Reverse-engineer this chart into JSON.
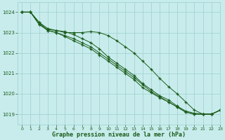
{
  "xlabel": "Graphe pression niveau de la mer (hPa)",
  "ylim": [
    1018.5,
    1024.5
  ],
  "xlim": [
    -0.5,
    23
  ],
  "yticks": [
    1019,
    1020,
    1021,
    1022,
    1023,
    1024
  ],
  "xticks": [
    0,
    1,
    2,
    3,
    4,
    5,
    6,
    7,
    8,
    9,
    10,
    11,
    12,
    13,
    14,
    15,
    16,
    17,
    18,
    19,
    20,
    21,
    22,
    23
  ],
  "background_color": "#c8ecec",
  "grid_color": "#9ecfcf",
  "line_color": "#1a5c1a",
  "series": [
    {
      "x": [
        0,
        1,
        2,
        3,
        4,
        5,
        6,
        7,
        8,
        9,
        10,
        11,
        12,
        13,
        14,
        15,
        16,
        17,
        18,
        19,
        20,
        21,
        22,
        23
      ],
      "y": [
        1024.0,
        1024.0,
        1023.5,
        1023.2,
        1023.1,
        1023.05,
        1022.9,
        1022.7,
        1022.5,
        1022.2,
        1021.8,
        1021.5,
        1021.2,
        1020.9,
        1020.5,
        1020.2,
        1019.9,
        1019.7,
        1019.4,
        1019.15,
        1019.05,
        1019.0,
        1019.0,
        1019.2
      ]
    },
    {
      "x": [
        0,
        1,
        2,
        3,
        4,
        5,
        6,
        7,
        8,
        9,
        10,
        11,
        12,
        13,
        14,
        15,
        16,
        17,
        18,
        19,
        20,
        21,
        22,
        23
      ],
      "y": [
        1024.0,
        1024.0,
        1023.5,
        1023.1,
        1023.0,
        1022.8,
        1022.6,
        1022.4,
        1022.2,
        1021.9,
        1021.6,
        1021.3,
        1021.0,
        1020.7,
        1020.3,
        1020.05,
        1019.8,
        1019.6,
        1019.35,
        1019.1,
        1019.0,
        1019.0,
        1019.0,
        1019.2
      ]
    },
    {
      "x": [
        0,
        1,
        2,
        3,
        4,
        5,
        6,
        7,
        8,
        9,
        10,
        11,
        12,
        13,
        14,
        15,
        16,
        17,
        18,
        19,
        20,
        21,
        22,
        23
      ],
      "y": [
        1024.0,
        1024.0,
        1023.4,
        1023.1,
        1023.0,
        1022.85,
        1022.7,
        1022.5,
        1022.3,
        1022.0,
        1021.7,
        1021.4,
        1021.1,
        1020.8,
        1020.45,
        1020.1,
        1019.85,
        1019.6,
        1019.35,
        1019.1,
        1019.0,
        1019.0,
        1019.0,
        1019.2
      ]
    },
    {
      "x": [
        0,
        1,
        2,
        3,
        4,
        5,
        6,
        7,
        8,
        9,
        10,
        11,
        12,
        13,
        14,
        15,
        16,
        17,
        18,
        19,
        20,
        21,
        22,
        23
      ],
      "y": [
        1024.0,
        1024.0,
        1023.4,
        1023.15,
        1023.1,
        1023.0,
        1023.0,
        1023.0,
        1023.05,
        1023.0,
        1022.85,
        1022.6,
        1022.3,
        1022.0,
        1021.6,
        1021.2,
        1020.75,
        1020.35,
        1020.0,
        1019.6,
        1019.2,
        1019.0,
        1019.0,
        1019.2
      ]
    }
  ],
  "figsize": [
    3.2,
    2.0
  ],
  "dpi": 100
}
